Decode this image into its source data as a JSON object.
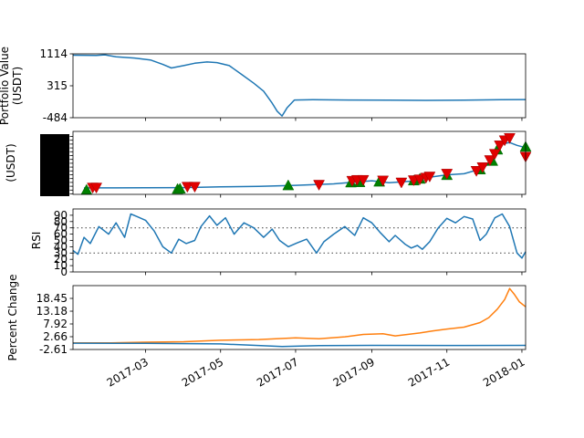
{
  "chart_data": [
    {
      "type": "line",
      "ylabel_lines": [
        "Portfolio Value",
        "(USDT)"
      ],
      "ylim": [
        -484,
        1114
      ],
      "yticks": [
        1114,
        315,
        -484
      ],
      "series": [
        {
          "color": "#1f77b4",
          "points": [
            [
              "2017-01-01",
              1080
            ],
            [
              "2017-01-20",
              1075
            ],
            [
              "2017-01-27",
              1090
            ],
            [
              "2017-02-05",
              1040
            ],
            [
              "2017-02-20",
              1010
            ],
            [
              "2017-03-05",
              960
            ],
            [
              "2017-03-15",
              850
            ],
            [
              "2017-03-22",
              760
            ],
            [
              "2017-04-01",
              820
            ],
            [
              "2017-04-10",
              880
            ],
            [
              "2017-04-20",
              910
            ],
            [
              "2017-04-28",
              895
            ],
            [
              "2017-05-08",
              820
            ],
            [
              "2017-05-18",
              600
            ],
            [
              "2017-05-28",
              380
            ],
            [
              "2017-06-05",
              180
            ],
            [
              "2017-06-12",
              -120
            ],
            [
              "2017-06-16",
              -320
            ],
            [
              "2017-06-20",
              -440
            ],
            [
              "2017-06-24",
              -240
            ],
            [
              "2017-06-30",
              -40
            ],
            [
              "2017-07-15",
              -35
            ],
            [
              "2017-08-15",
              -40
            ],
            [
              "2017-09-15",
              -45
            ],
            [
              "2017-10-15",
              -50
            ],
            [
              "2017-11-15",
              -45
            ],
            [
              "2017-12-15",
              -35
            ],
            [
              "2018-01-04",
              -30
            ]
          ]
        }
      ]
    },
    {
      "type": "line",
      "ylabel_lines": [
        "(USDT)"
      ],
      "note": "price line with buy (green up-triangle) and sell (red down-triangle) markers; y tick labels overlap illegibly",
      "series": [
        {
          "color": "#1f77b4",
          "points": [
            [
              "2017-01-10",
              1.0
            ],
            [
              "2017-02-01",
              1.0
            ],
            [
              "2017-03-01",
              1.05
            ],
            [
              "2017-04-01",
              1.1
            ],
            [
              "2017-05-01",
              1.35
            ],
            [
              "2017-06-01",
              1.5
            ],
            [
              "2017-07-01",
              1.9
            ],
            [
              "2017-08-01",
              2.4
            ],
            [
              "2017-08-20",
              3.1
            ],
            [
              "2017-09-01",
              3.5
            ],
            [
              "2017-09-15",
              2.8
            ],
            [
              "2017-10-01",
              3.3
            ],
            [
              "2017-10-15",
              4.6
            ],
            [
              "2017-11-01",
              5.6
            ],
            [
              "2017-11-15",
              6.0
            ],
            [
              "2017-12-01",
              8.0
            ],
            [
              "2017-12-10",
              12.0
            ],
            [
              "2017-12-15",
              16.5
            ],
            [
              "2017-12-22",
              17.0
            ],
            [
              "2017-12-28",
              16.0
            ],
            [
              "2018-01-04",
              15.2
            ]
          ]
        }
      ],
      "buy_markers": [
        [
          "2017-01-12",
          0.3
        ],
        [
          "2017-03-27",
          0.6
        ],
        [
          "2017-03-29",
          0.7
        ],
        [
          "2017-06-25",
          1.9
        ],
        [
          "2017-08-15",
          2.9
        ],
        [
          "2017-08-22",
          3.0
        ],
        [
          "2017-09-07",
          3.2
        ],
        [
          "2017-10-05",
          3.6
        ],
        [
          "2017-10-10",
          4.2
        ],
        [
          "2017-11-01",
          5.5
        ],
        [
          "2017-11-28",
          7.5
        ],
        [
          "2017-12-08",
          10.5
        ],
        [
          "2017-12-12",
          14.5
        ],
        [
          "2018-01-04",
          15.5
        ]
      ],
      "sell_markers": [
        [
          "2017-01-17",
          1.1
        ],
        [
          "2017-01-20",
          1.1
        ],
        [
          "2017-04-04",
          1.4
        ],
        [
          "2017-04-10",
          1.4
        ],
        [
          "2017-07-20",
          2.1
        ],
        [
          "2017-08-16",
          3.5
        ],
        [
          "2017-08-20",
          3.8
        ],
        [
          "2017-08-25",
          3.8
        ],
        [
          "2017-09-10",
          3.6
        ],
        [
          "2017-09-25",
          2.9
        ],
        [
          "2017-10-05",
          3.7
        ],
        [
          "2017-10-10",
          4.0
        ],
        [
          "2017-10-15",
          4.6
        ],
        [
          "2017-10-18",
          5.0
        ],
        [
          "2017-11-01",
          6.0
        ],
        [
          "2017-11-25",
          7.0
        ],
        [
          "2017-11-30",
          8.3
        ],
        [
          "2017-12-06",
          10.8
        ],
        [
          "2017-12-10",
          13.0
        ],
        [
          "2017-12-14",
          16.0
        ],
        [
          "2017-12-18",
          17.8
        ],
        [
          "2017-12-22",
          18.6
        ],
        [
          "2018-01-04",
          12.0
        ]
      ],
      "ylim": [
        0,
        19
      ]
    },
    {
      "type": "line",
      "ylabel_lines": [
        "RSI"
      ],
      "ylim": [
        0,
        100
      ],
      "yticks": [
        0,
        10,
        20,
        30,
        40,
        50,
        60,
        70,
        80,
        90
      ],
      "hlines": [
        30,
        70
      ],
      "series": [
        {
          "color": "#1f77b4",
          "points": [
            [
              "2017-01-01",
              34
            ],
            [
              "2017-01-05",
              28
            ],
            [
              "2017-01-10",
              55
            ],
            [
              "2017-01-15",
              45
            ],
            [
              "2017-01-22",
              72
            ],
            [
              "2017-01-30",
              60
            ],
            [
              "2017-02-05",
              78
            ],
            [
              "2017-02-12",
              55
            ],
            [
              "2017-02-17",
              92
            ],
            [
              "2017-02-22",
              88
            ],
            [
              "2017-03-01",
              82
            ],
            [
              "2017-03-08",
              65
            ],
            [
              "2017-03-15",
              40
            ],
            [
              "2017-03-22",
              30
            ],
            [
              "2017-03-28",
              52
            ],
            [
              "2017-04-03",
              45
            ],
            [
              "2017-04-10",
              50
            ],
            [
              "2017-04-15",
              72
            ],
            [
              "2017-04-22",
              89
            ],
            [
              "2017-04-28",
              74
            ],
            [
              "2017-05-05",
              86
            ],
            [
              "2017-05-12",
              60
            ],
            [
              "2017-05-20",
              78
            ],
            [
              "2017-05-28",
              70
            ],
            [
              "2017-06-05",
              55
            ],
            [
              "2017-06-12",
              68
            ],
            [
              "2017-06-18",
              50
            ],
            [
              "2017-06-25",
              40
            ],
            [
              "2017-07-02",
              46
            ],
            [
              "2017-07-10",
              52
            ],
            [
              "2017-07-18",
              30
            ],
            [
              "2017-07-24",
              48
            ],
            [
              "2017-08-01",
              60
            ],
            [
              "2017-08-10",
              72
            ],
            [
              "2017-08-18",
              58
            ],
            [
              "2017-08-25",
              86
            ],
            [
              "2017-09-01",
              78
            ],
            [
              "2017-09-08",
              62
            ],
            [
              "2017-09-15",
              48
            ],
            [
              "2017-09-20",
              58
            ],
            [
              "2017-09-28",
              44
            ],
            [
              "2017-10-03",
              38
            ],
            [
              "2017-10-08",
              42
            ],
            [
              "2017-10-12",
              36
            ],
            [
              "2017-10-18",
              48
            ],
            [
              "2017-10-25",
              70
            ],
            [
              "2017-11-01",
              85
            ],
            [
              "2017-11-08",
              78
            ],
            [
              "2017-11-15",
              88
            ],
            [
              "2017-11-22",
              84
            ],
            [
              "2017-11-28",
              50
            ],
            [
              "2017-12-03",
              60
            ],
            [
              "2017-12-10",
              86
            ],
            [
              "2017-12-16",
              92
            ],
            [
              "2017-12-22",
              72
            ],
            [
              "2017-12-28",
              30
            ],
            [
              "2018-01-01",
              22
            ],
            [
              "2018-01-04",
              32
            ]
          ]
        }
      ]
    },
    {
      "type": "line",
      "ylabel_lines": [
        "Percent Change"
      ],
      "ylim": [
        -2.61,
        23.72
      ],
      "yticks": [
        -2.61,
        2.66,
        7.92,
        13.18,
        18.45
      ],
      "xticks": [
        "2017-03",
        "2017-05",
        "2017-07",
        "2017-09",
        "2017-11",
        "2018-01"
      ],
      "series": [
        {
          "color": "#ff7f0e",
          "points": [
            [
              "2017-01-01",
              0.1
            ],
            [
              "2017-02-01",
              0.15
            ],
            [
              "2017-03-01",
              0.4
            ],
            [
              "2017-04-01",
              0.6
            ],
            [
              "2017-05-01",
              1.2
            ],
            [
              "2017-06-01",
              1.5
            ],
            [
              "2017-07-01",
              2.2
            ],
            [
              "2017-07-20",
              1.8
            ],
            [
              "2017-08-10",
              2.6
            ],
            [
              "2017-08-25",
              3.6
            ],
            [
              "2017-09-10",
              3.9
            ],
            [
              "2017-09-20",
              3.0
            ],
            [
              "2017-10-10",
              4.2
            ],
            [
              "2017-10-20",
              5.0
            ],
            [
              "2017-11-01",
              5.8
            ],
            [
              "2017-11-15",
              6.6
            ],
            [
              "2017-11-28",
              8.5
            ],
            [
              "2017-12-05",
              10.5
            ],
            [
              "2017-12-12",
              14.0
            ],
            [
              "2017-12-18",
              18.0
            ],
            [
              "2017-12-22",
              22.5
            ],
            [
              "2017-12-26",
              20.0
            ],
            [
              "2017-12-30",
              17.0
            ],
            [
              "2018-01-04",
              15.0
            ]
          ]
        },
        {
          "color": "#1f77b4",
          "points": [
            [
              "2017-01-01",
              0.0
            ],
            [
              "2017-03-01",
              -0.1
            ],
            [
              "2017-05-01",
              -0.3
            ],
            [
              "2017-06-20",
              -1.4
            ],
            [
              "2017-07-20",
              -1.0
            ],
            [
              "2017-09-01",
              -0.9
            ],
            [
              "2017-11-01",
              -0.95
            ],
            [
              "2018-01-04",
              -0.9
            ]
          ]
        }
      ]
    }
  ]
}
